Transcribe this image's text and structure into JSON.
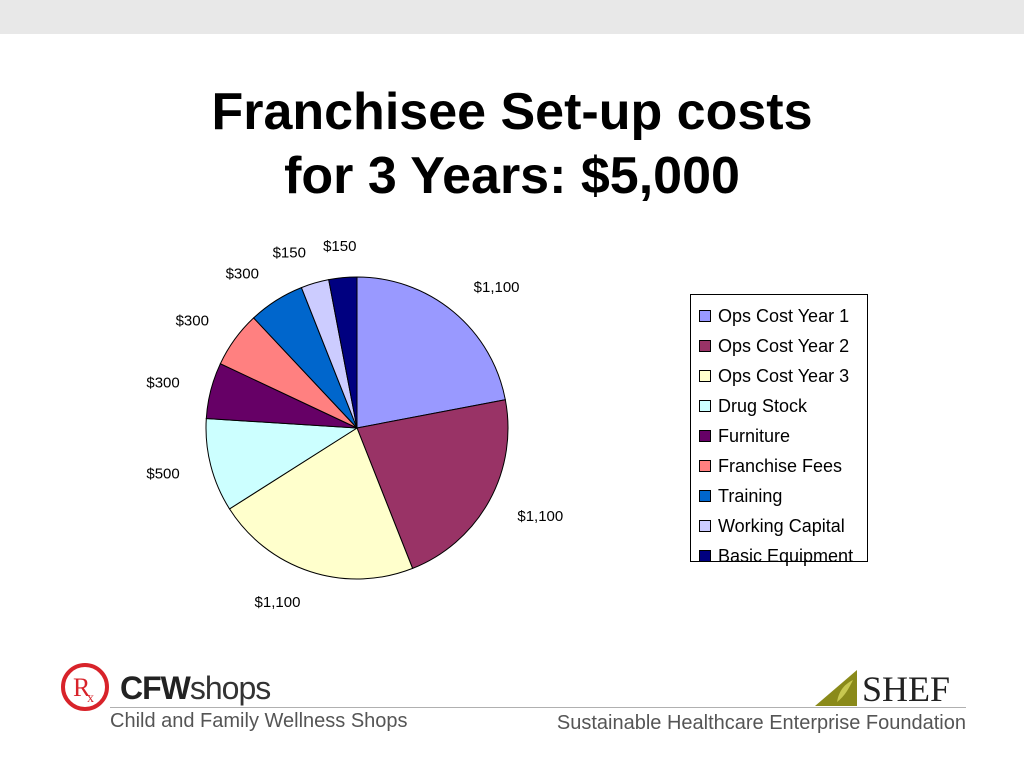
{
  "slide": {
    "title_line1": "Franchisee Set-up costs",
    "title_line2": "for 3 Years: $5,000"
  },
  "chart_data": {
    "type": "pie",
    "title": "Franchisee Set-up costs for 3 Years: $5,000",
    "legend_position": "right",
    "slices": [
      {
        "label": "Ops Cost Year 1",
        "value": 1100,
        "display": "$1,100",
        "color": "#9999ff"
      },
      {
        "label": "Ops Cost Year 2",
        "value": 1100,
        "display": "$1,100",
        "color": "#993366"
      },
      {
        "label": "Ops Cost Year 3",
        "value": 1100,
        "display": "$1,100",
        "color": "#ffffcc"
      },
      {
        "label": "Drug Stock",
        "value": 500,
        "display": "$500",
        "color": "#ccffff"
      },
      {
        "label": "Furniture",
        "value": 300,
        "display": "$300",
        "color": "#660066"
      },
      {
        "label": "Franchise Fees",
        "value": 300,
        "display": "$300",
        "color": "#ff8080"
      },
      {
        "label": "Training",
        "value": 300,
        "display": "$300",
        "color": "#0066cc"
      },
      {
        "label": "Working Capital",
        "value": 150,
        "display": "$150",
        "color": "#ccccff"
      },
      {
        "label": "Basic Equipment",
        "value": 150,
        "display": "$150",
        "color": "#000080"
      }
    ]
  },
  "footer": {
    "left_logo_text_bold": "CFW",
    "left_logo_text": "shops",
    "left_caption": "Child and Family Wellness Shops",
    "right_logo_text": "SHEF",
    "right_caption": "Sustainable Healthcare Enterprise Foundation"
  }
}
